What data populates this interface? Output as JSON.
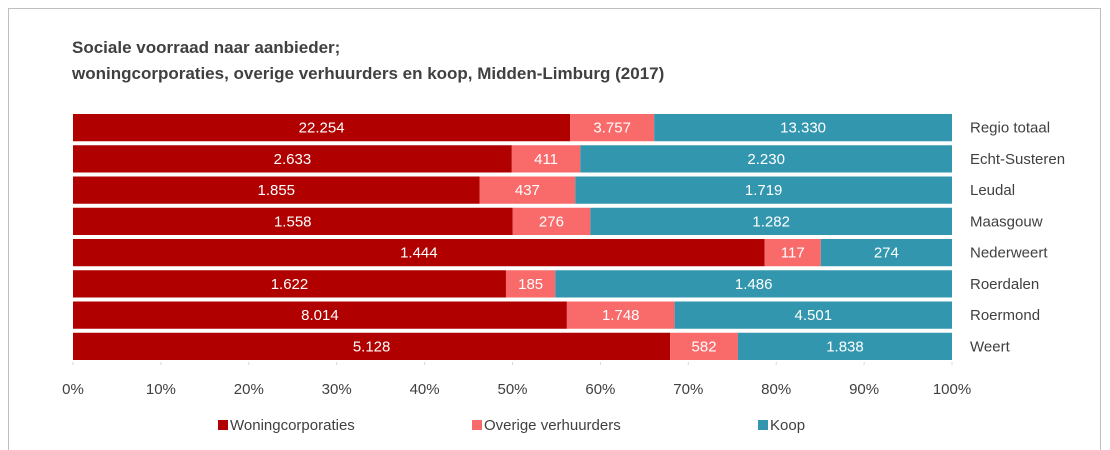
{
  "chart_data": {
    "type": "stacked_bar_100",
    "title": [
      "Sociale voorraad naar aanbieder;",
      "woningcorporaties, overige verhuurders en koop, Midden-Limburg (2017)"
    ],
    "categories": [
      "Regio totaal",
      "Echt-Susteren",
      "Leudal",
      "Maasgouw",
      "Nederweert",
      "Roerdalen",
      "Roermond",
      "Weert"
    ],
    "series": [
      {
        "name": "Woningcorporaties",
        "color": "#b00000",
        "values": [
          22254,
          2633,
          1855,
          1558,
          1444,
          1622,
          8014,
          5128
        ],
        "value_labels": [
          "22.254",
          "2.633",
          "1.855",
          "1.558",
          "1.444",
          "1.622",
          "8.014",
          "5.128"
        ]
      },
      {
        "name": "Overige verhuurders",
        "color": "#f96a6a",
        "values": [
          3757,
          411,
          437,
          276,
          117,
          185,
          1748,
          582
        ],
        "value_labels": [
          "3.757",
          "411",
          "437",
          "276",
          "117",
          "185",
          "1.748",
          "582"
        ]
      },
      {
        "name": "Koop",
        "color": "#3297ae",
        "values": [
          13330,
          2230,
          1719,
          1282,
          274,
          1486,
          4501,
          1838
        ],
        "value_labels": [
          "13.330",
          "2.230",
          "1.719",
          "1.282",
          "274",
          "1.486",
          "4.501",
          "1.838"
        ]
      }
    ],
    "xlim": [
      0,
      100
    ],
    "xticks": [
      {
        "value": 0,
        "label": "0%"
      },
      {
        "value": 10,
        "label": "10%"
      },
      {
        "value": 20,
        "label": "20%"
      },
      {
        "value": 30,
        "label": "30%"
      },
      {
        "value": 40,
        "label": "40%"
      },
      {
        "value": 50,
        "label": "50%"
      },
      {
        "value": 60,
        "label": "60%"
      },
      {
        "value": 70,
        "label": "70%"
      },
      {
        "value": 80,
        "label": "80%"
      },
      {
        "value": 90,
        "label": "90%"
      },
      {
        "value": 100,
        "label": "100%"
      }
    ],
    "legend": "bottom"
  }
}
